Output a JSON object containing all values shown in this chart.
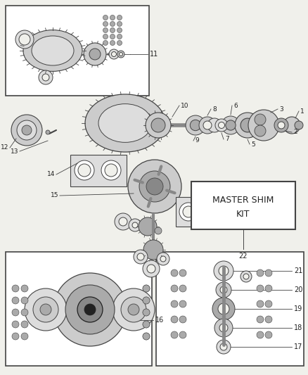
{
  "bg_color": "#f0f0eb",
  "line_color": "#444444",
  "dark_color": "#222222",
  "gray1": "#888888",
  "gray2": "#aaaaaa",
  "gray3": "#cccccc",
  "gray4": "#dddddd",
  "white": "#ffffff",
  "figsize": [
    4.39,
    5.33
  ],
  "dpi": 100
}
